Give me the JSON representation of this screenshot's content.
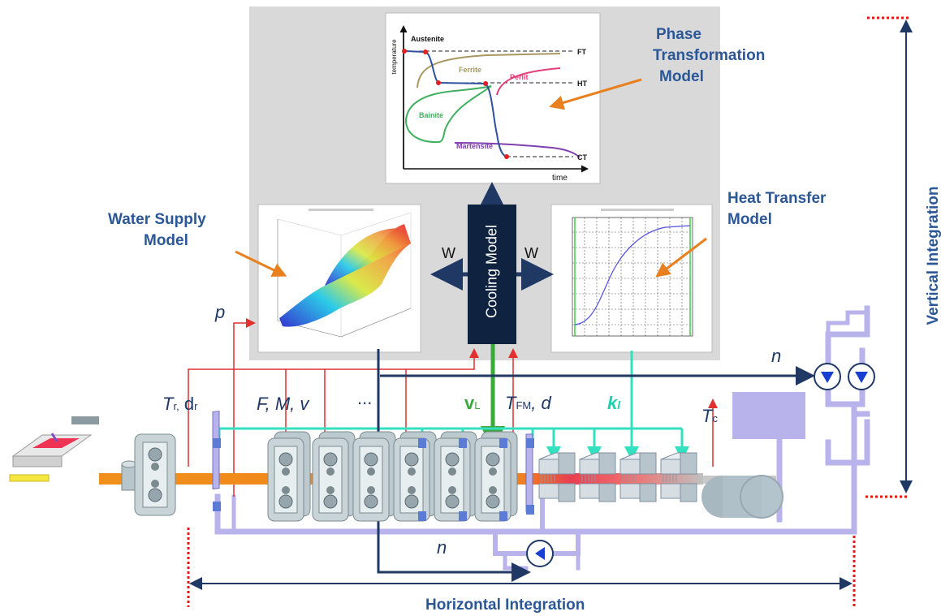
{
  "titles": {
    "phase_model": [
      "Phase",
      "Transformation",
      "Model"
    ],
    "heat_model": [
      "Heat Transfer",
      "Model"
    ],
    "water_model": [
      "Water Supply",
      "Model"
    ],
    "vertical": "Vertical Integration",
    "horizontal": "Horizontal Integration"
  },
  "cooling_model": "Cooling Model",
  "w_left": "W",
  "w_right": "W",
  "variables": {
    "p": "p",
    "n_top": "n",
    "n_bottom": "n",
    "tr": "T",
    "tr_sub": "r,",
    "dr": "d",
    "dr_sub": "r",
    "fmv": "F, M, v",
    "dots": "...",
    "vl": "v",
    "vl_sub": "L",
    "tfm": "T",
    "tfm_sub": "FM",
    "tfm_d": ", d",
    "kl": "k",
    "kl_sub": "l",
    "tc": "T",
    "tc_sub": "c"
  },
  "phase_chart": {
    "ylabel": "temperature",
    "xlabel": "time",
    "levels": [
      "FT",
      "HT",
      "CT"
    ],
    "phases": [
      "Austenite",
      "Ferrite",
      "Perlit",
      "Bainite",
      "Martensite"
    ]
  },
  "colors": {
    "navy": "#1f3864",
    "title_blue": "#2b5797",
    "red": "#e03030",
    "green": "#3aa83a",
    "cyan": "#33e0c0",
    "lavender": "#b9b3ec",
    "orange": "#e8801f",
    "gray_panel": "#d9d9d9"
  }
}
